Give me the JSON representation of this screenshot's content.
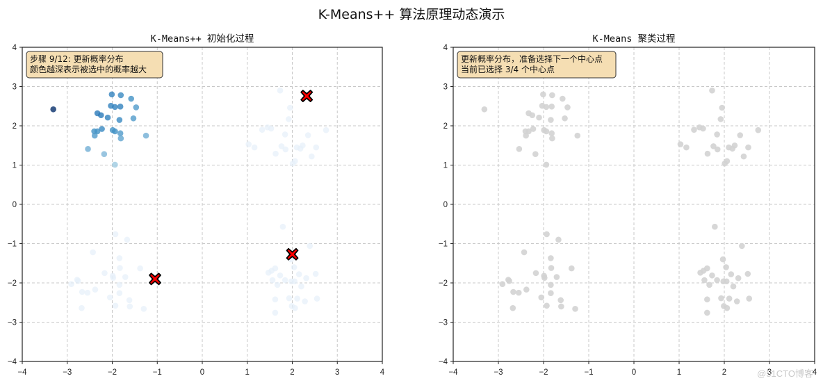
{
  "figure": {
    "suptitle": "K-Means++ 算法原理动态演示",
    "watermark": "@51CTO博客"
  },
  "colors": {
    "centroid_fill": "#ff0000",
    "centroid_edge": "#000000",
    "infobox_fill": "#f5deb3",
    "infobox_edge": "#333333",
    "grid": "#c8c8c8",
    "gray_point": "#d3d3d3",
    "blue_dark": "#08306b",
    "blue_mid": "#3b82c4",
    "blue_faint": "#e6f0fa"
  },
  "chart_data": [
    {
      "type": "scatter",
      "title": "K-Means++ 初始化过程",
      "xlabel": "",
      "ylabel": "",
      "xlim": [
        -4,
        4
      ],
      "ylim": [
        -4,
        4
      ],
      "xticks": [
        "−4",
        "−3",
        "−2",
        "−1",
        "0",
        "1",
        "2",
        "3",
        "4"
      ],
      "yticks": [
        "4",
        "3",
        "2",
        "1",
        "0",
        "−1",
        "−2",
        "−3",
        "−4"
      ],
      "grid": true,
      "annotation": [
        "步骤 9/12: 更新概率分布",
        "颜色越深表示被选中的概率越大"
      ],
      "series": [
        {
          "name": "points (probability-weighted, Blues colormap)",
          "points": [
            {
              "x": -3.31,
              "y": 2.42,
              "p": 1.0
            },
            {
              "x": -2.01,
              "y": 2.8,
              "p": 0.7
            },
            {
              "x": -1.81,
              "y": 2.78,
              "p": 0.65
            },
            {
              "x": -1.58,
              "y": 2.69,
              "p": 0.6
            },
            {
              "x": -2.03,
              "y": 2.51,
              "p": 0.7
            },
            {
              "x": -1.94,
              "y": 2.48,
              "p": 0.7
            },
            {
              "x": -1.82,
              "y": 2.49,
              "p": 0.7
            },
            {
              "x": -1.47,
              "y": 2.47,
              "p": 0.55
            },
            {
              "x": -2.33,
              "y": 2.32,
              "p": 0.75
            },
            {
              "x": -2.25,
              "y": 2.27,
              "p": 0.75
            },
            {
              "x": -2.1,
              "y": 2.21,
              "p": 0.7
            },
            {
              "x": -1.84,
              "y": 2.15,
              "p": 0.65
            },
            {
              "x": -1.53,
              "y": 2.19,
              "p": 0.55
            },
            {
              "x": -2.23,
              "y": 1.92,
              "p": 0.65
            },
            {
              "x": -2.4,
              "y": 1.86,
              "p": 0.6
            },
            {
              "x": -2.33,
              "y": 1.86,
              "p": 0.6
            },
            {
              "x": -1.99,
              "y": 1.89,
              "p": 0.6
            },
            {
              "x": -1.94,
              "y": 1.86,
              "p": 0.6
            },
            {
              "x": -1.82,
              "y": 1.81,
              "p": 0.55
            },
            {
              "x": -2.39,
              "y": 1.75,
              "p": 0.55
            },
            {
              "x": -1.81,
              "y": 1.68,
              "p": 0.5
            },
            {
              "x": -1.25,
              "y": 1.75,
              "p": 0.45
            },
            {
              "x": -2.54,
              "y": 1.41,
              "p": 0.45
            },
            {
              "x": -2.18,
              "y": 1.28,
              "p": 0.4
            },
            {
              "x": -1.94,
              "y": 1.01,
              "p": 0.3
            },
            {
              "x": 1.73,
              "y": 2.9,
              "p": 0.06
            },
            {
              "x": 1.95,
              "y": 2.46,
              "p": 0.06
            },
            {
              "x": 1.92,
              "y": 2.17,
              "p": 0.06
            },
            {
              "x": 1.33,
              "y": 1.9,
              "p": 0.06
            },
            {
              "x": 1.45,
              "y": 1.96,
              "p": 0.06
            },
            {
              "x": 1.53,
              "y": 1.93,
              "p": 0.06
            },
            {
              "x": 1.84,
              "y": 1.78,
              "p": 0.06
            },
            {
              "x": 2.35,
              "y": 1.76,
              "p": 0.06
            },
            {
              "x": 2.75,
              "y": 1.89,
              "p": 0.06
            },
            {
              "x": 1.76,
              "y": 1.48,
              "p": 0.06
            },
            {
              "x": 1.85,
              "y": 1.4,
              "p": 0.06
            },
            {
              "x": 2.1,
              "y": 1.45,
              "p": 0.06
            },
            {
              "x": 2.18,
              "y": 1.42,
              "p": 0.06
            },
            {
              "x": 2.23,
              "y": 1.5,
              "p": 0.06
            },
            {
              "x": 2.53,
              "y": 1.45,
              "p": 0.06
            },
            {
              "x": 1.03,
              "y": 1.53,
              "p": 0.06
            },
            {
              "x": 1.16,
              "y": 1.45,
              "p": 0.06
            },
            {
              "x": 1.63,
              "y": 1.29,
              "p": 0.06
            },
            {
              "x": 2.43,
              "y": 1.22,
              "p": 0.06
            },
            {
              "x": 2.01,
              "y": 1.04,
              "p": 0.06
            },
            {
              "x": 2.06,
              "y": 1.1,
              "p": 0.06
            },
            {
              "x": -1.93,
              "y": -0.76,
              "p": 0.06
            },
            {
              "x": -1.67,
              "y": -0.9,
              "p": 0.06
            },
            {
              "x": -2.43,
              "y": -1.22,
              "p": 0.06
            },
            {
              "x": -1.84,
              "y": -1.37,
              "p": 0.06
            },
            {
              "x": -1.83,
              "y": -1.62,
              "p": 0.06
            },
            {
              "x": -1.38,
              "y": -1.63,
              "p": 0.06
            },
            {
              "x": -2.17,
              "y": -1.75,
              "p": 0.06
            },
            {
              "x": -1.99,
              "y": -1.82,
              "p": 0.06
            },
            {
              "x": -1.98,
              "y": -1.87,
              "p": 0.06
            },
            {
              "x": -1.71,
              "y": -1.85,
              "p": 0.06
            },
            {
              "x": -2.78,
              "y": -1.92,
              "p": 0.06
            },
            {
              "x": -2.76,
              "y": -1.95,
              "p": 0.06
            },
            {
              "x": -2.91,
              "y": -2.03,
              "p": 0.06
            },
            {
              "x": -1.84,
              "y": -2.05,
              "p": 0.06
            },
            {
              "x": -2.67,
              "y": -2.23,
              "p": 0.06
            },
            {
              "x": -2.38,
              "y": -2.17,
              "p": 0.06
            },
            {
              "x": -2.55,
              "y": -2.25,
              "p": 0.06
            },
            {
              "x": -2.05,
              "y": -2.37,
              "p": 0.06
            },
            {
              "x": -1.84,
              "y": -2.26,
              "p": 0.06
            },
            {
              "x": -1.62,
              "y": -2.44,
              "p": 0.06
            },
            {
              "x": -1.61,
              "y": -2.6,
              "p": 0.06
            },
            {
              "x": -2.68,
              "y": -2.64,
              "p": 0.06
            },
            {
              "x": -1.93,
              "y": -2.58,
              "p": 0.06
            },
            {
              "x": -1.3,
              "y": -2.66,
              "p": 0.06
            },
            {
              "x": 1.79,
              "y": -0.57,
              "p": 0.06
            },
            {
              "x": 2.39,
              "y": -1.06,
              "p": 0.06
            },
            {
              "x": 1.97,
              "y": -1.4,
              "p": 0.06
            },
            {
              "x": 1.62,
              "y": -1.63,
              "p": 0.06
            },
            {
              "x": 1.73,
              "y": -1.81,
              "p": 0.06
            },
            {
              "x": 2.04,
              "y": -1.6,
              "p": 0.06
            },
            {
              "x": 1.54,
              "y": -1.69,
              "p": 0.06
            },
            {
              "x": 2.15,
              "y": -1.78,
              "p": 0.06
            },
            {
              "x": 2.31,
              "y": -1.88,
              "p": 0.06
            },
            {
              "x": 1.47,
              "y": -1.74,
              "p": 0.06
            },
            {
              "x": 1.56,
              "y": -1.93,
              "p": 0.06
            },
            {
              "x": 1.67,
              "y": -2.05,
              "p": 0.06
            },
            {
              "x": 1.84,
              "y": -1.93,
              "p": 0.06
            },
            {
              "x": 1.98,
              "y": -1.96,
              "p": 0.06
            },
            {
              "x": 2.05,
              "y": -1.96,
              "p": 0.06
            },
            {
              "x": 2.2,
              "y": -2.09,
              "p": 0.06
            },
            {
              "x": 2.52,
              "y": -1.77,
              "p": 0.06
            },
            {
              "x": 1.62,
              "y": -2.42,
              "p": 0.06
            },
            {
              "x": 1.93,
              "y": -2.39,
              "p": 0.06
            },
            {
              "x": 2.11,
              "y": -2.4,
              "p": 0.06
            },
            {
              "x": 2.28,
              "y": -2.47,
              "p": 0.06
            },
            {
              "x": 2.55,
              "y": -2.4,
              "p": 0.06
            },
            {
              "x": 1.62,
              "y": -2.76,
              "p": 0.06
            },
            {
              "x": 1.99,
              "y": -2.59,
              "p": 0.06
            },
            {
              "x": 2.06,
              "y": -2.64,
              "p": 0.06
            }
          ]
        },
        {
          "name": "selected centroids",
          "marker": "X",
          "points": [
            {
              "x": -1.05,
              "y": -1.9
            },
            {
              "x": 2.32,
              "y": 2.76
            },
            {
              "x": 2.0,
              "y": -1.27
            }
          ]
        }
      ]
    },
    {
      "type": "scatter",
      "title": "K-Means 聚类过程",
      "xlabel": "",
      "ylabel": "",
      "xlim": [
        -4,
        4
      ],
      "ylim": [
        -4,
        4
      ],
      "xticks": [
        "−4",
        "−3",
        "−2",
        "−1",
        "0",
        "1",
        "2",
        "3",
        "4"
      ],
      "yticks": [
        "4",
        "3",
        "2",
        "1",
        "0",
        "−1",
        "−2",
        "−3",
        "−4"
      ],
      "grid": true,
      "annotation": [
        "更新概率分布，准备选择下一个中心点",
        "当前已选择 3/4 个中心点"
      ],
      "series": [
        {
          "name": "unassigned points (gray)",
          "same_points_as_left": true
        }
      ]
    }
  ]
}
